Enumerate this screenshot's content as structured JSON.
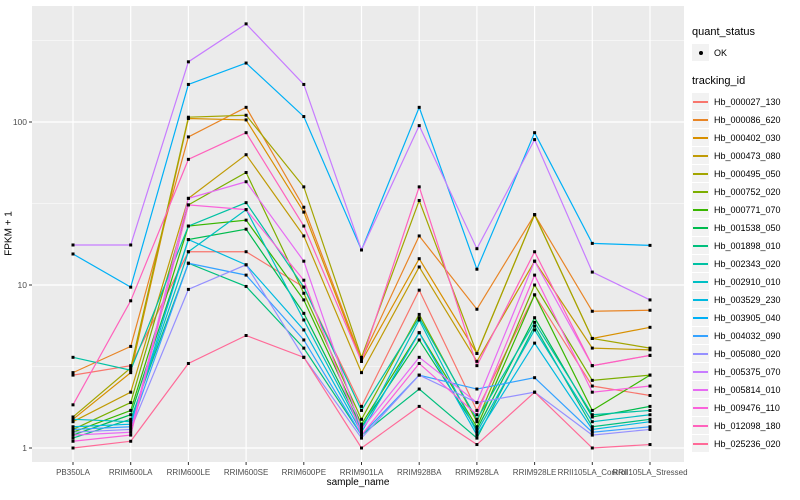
{
  "colors": {
    "background": "#FFFFFF",
    "panel": "#EBEBEB",
    "grid": "#FFFFFF",
    "axis_text": "#4D4D4D",
    "axis_title": "#000000",
    "point": "#000000",
    "legend_key": "#F2F2F2",
    "tick": "#333333"
  },
  "chart_data": {
    "type": "line",
    "title": "",
    "xlabel": "sample_name",
    "ylabel": "FPKM + 1",
    "x_categories": [
      "PB350LA",
      "RRIM600LA",
      "RRIM600LE",
      "RRIM600SE",
      "RRIM600PE",
      "RRIM901LA",
      "RRIM928BA",
      "RRIM928LA",
      "RRIM928LE",
      "RRII105LA_Control",
      "RRII105LA_Stressed"
    ],
    "y_scale": "log10",
    "y_ticks": [
      1,
      10,
      100
    ],
    "y_minor_gridlines": [
      3.162,
      31.62,
      316.2
    ],
    "ylim": [
      1,
      450
    ],
    "grid": true,
    "legend_position": "right",
    "legend": {
      "quant_status_title": "quant_status",
      "quant_status_value": "OK",
      "tracking_id_title": "tracking_id"
    },
    "point_marker": "filled-black-point",
    "series": [
      {
        "name": "Hb_000027_130",
        "color": "#F8766D",
        "values": [
          2.8,
          3.2,
          16,
          16,
          9.7,
          1.8,
          9.3,
          1.7,
          8.7,
          2.4,
          2.1
        ]
      },
      {
        "name": "Hb_000086_620",
        "color": "#E88526",
        "values": [
          2.9,
          4.2,
          81,
          123,
          30,
          3.5,
          20,
          7.1,
          27,
          6.9,
          7.0
        ]
      },
      {
        "name": "Hb_000402_030",
        "color": "#D89000",
        "values": [
          1.5,
          2.9,
          105,
          103,
          28,
          3.4,
          14.5,
          3.8,
          27,
          4.7,
          5.5
        ]
      },
      {
        "name": "Hb_000473_080",
        "color": "#C09B06",
        "values": [
          1.45,
          2.2,
          34,
          63,
          20,
          2.9,
          12.9,
          3.4,
          14,
          4.1,
          4.0
        ]
      },
      {
        "name": "Hb_000495_050",
        "color": "#A3A500",
        "values": [
          1.55,
          3.1,
          107,
          110,
          40,
          3.6,
          33,
          3.8,
          27,
          4.7,
          4.1
        ]
      },
      {
        "name": "Hb_000752_020",
        "color": "#7CAE00",
        "values": [
          1.3,
          1.9,
          31,
          49,
          8.9,
          1.5,
          6.6,
          1.45,
          10,
          2.6,
          2.8
        ]
      },
      {
        "name": "Hb_000771_070",
        "color": "#39B600",
        "values": [
          1.25,
          1.7,
          23,
          25,
          8.1,
          1.4,
          5.1,
          1.35,
          8.7,
          1.7,
          2.8
        ]
      },
      {
        "name": "Hb_001538_050",
        "color": "#00BB4E",
        "values": [
          1.2,
          1.6,
          19,
          22,
          6.7,
          1.35,
          4.6,
          1.3,
          6.3,
          1.55,
          1.8
        ]
      },
      {
        "name": "Hb_001898_010",
        "color": "#00BF7D",
        "values": [
          1.15,
          1.5,
          13.6,
          9.8,
          4.1,
          1.2,
          2.3,
          1.15,
          5.6,
          1.35,
          1.5
        ]
      },
      {
        "name": "Hb_002343_020",
        "color": "#00C1A3",
        "values": [
          3.6,
          3.0,
          23,
          32,
          9.7,
          1.7,
          6.3,
          1.5,
          5.9,
          1.6,
          1.7
        ]
      },
      {
        "name": "Hb_002910_010",
        "color": "#00BFC4",
        "values": [
          1.5,
          1.45,
          16,
          29,
          6.1,
          1.3,
          6.1,
          1.25,
          5.3,
          1.45,
          1.6
        ]
      },
      {
        "name": "Hb_003529_230",
        "color": "#00BAE0",
        "values": [
          1.35,
          1.4,
          19,
          13.3,
          5.3,
          1.25,
          5.1,
          1.2,
          4.4,
          1.3,
          1.45
        ]
      },
      {
        "name": "Hb_003905_040",
        "color": "#00B0F6",
        "values": [
          15.5,
          9.7,
          170,
          230,
          108,
          16.4,
          123,
          12.5,
          86,
          18,
          17.5
        ]
      },
      {
        "name": "Hb_004032_090",
        "color": "#35A2FF",
        "values": [
          1.3,
          1.35,
          13.6,
          11.5,
          4.6,
          1.2,
          2.8,
          2.3,
          2.7,
          1.25,
          1.35
        ]
      },
      {
        "name": "Hb_005080_020",
        "color": "#9590FF",
        "values": [
          1.25,
          1.3,
          9.4,
          13.3,
          3.6,
          1.15,
          2.8,
          1.9,
          2.2,
          1.2,
          1.3
        ]
      },
      {
        "name": "Hb_005375_070",
        "color": "#C77CFF",
        "values": [
          17.6,
          17.6,
          234,
          400,
          170,
          16.4,
          95,
          16.7,
          78,
          12,
          8.1
        ]
      },
      {
        "name": "Hb_005814_010",
        "color": "#E76BF3",
        "values": [
          1.2,
          1.25,
          34,
          43,
          14,
          1.3,
          3.6,
          1.9,
          14,
          3.2,
          3.7
        ]
      },
      {
        "name": "Hb_009476_110",
        "color": "#FA62DB",
        "values": [
          1.1,
          1.2,
          31,
          29,
          10.7,
          1.2,
          3.3,
          1.6,
          11.5,
          2.2,
          2.4
        ]
      },
      {
        "name": "Hb_012098_180",
        "color": "#FF62BC",
        "values": [
          1.84,
          8.0,
          59,
          86,
          23,
          3.4,
          40,
          3.2,
          16,
          3.2,
          3.7
        ]
      },
      {
        "name": "Hb_025236_020",
        "color": "#FF6A98",
        "values": [
          1.0,
          1.1,
          3.3,
          4.9,
          3.6,
          1.0,
          1.8,
          1.05,
          2.2,
          1.0,
          1.05
        ]
      }
    ]
  }
}
